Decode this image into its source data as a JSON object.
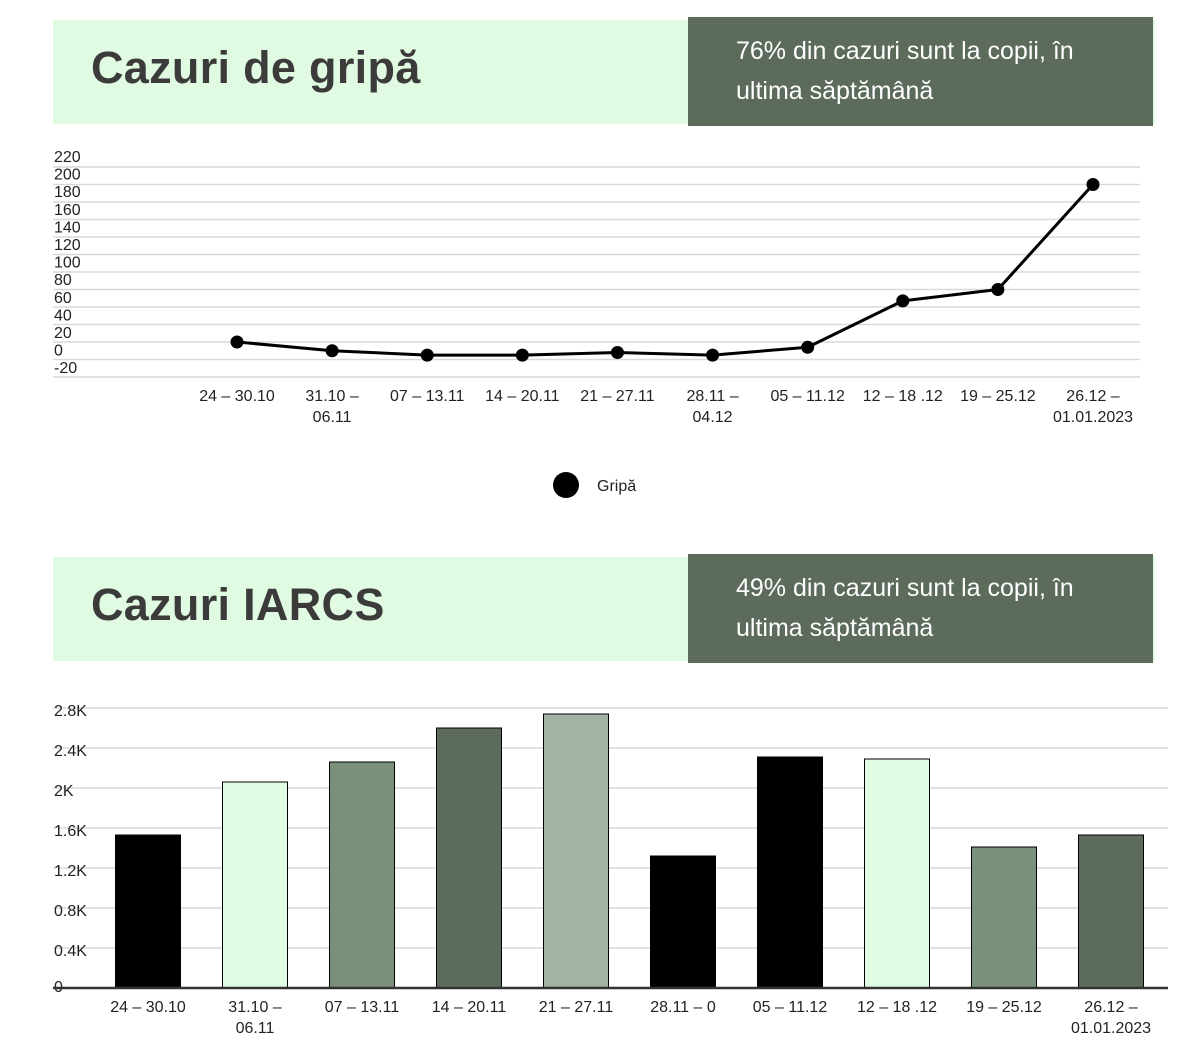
{
  "panels": [
    {
      "title": "Cazuri de gripă",
      "note": "76% din cazuri sunt la copii, în ultima săptămână"
    },
    {
      "title": "Cazuri IARCS",
      "note": "49% din cazuri sunt la copii, în ultima săptămână"
    }
  ],
  "colors": {
    "header_bg": "#e1fbe2",
    "note_bg": "#5c6b5b",
    "line": "#000000"
  },
  "chart_data": [
    {
      "type": "line",
      "title": "Cazuri de gripă",
      "categories": [
        "24 – 30.10",
        "31.10 – 06.11",
        "07 – 13.11",
        "14 – 20.11",
        "21 – 27.11",
        "28.11 – 04.12",
        "05 – 11.12",
        "12 – 18 .12",
        "19 – 25.12",
        "26.12 – 01.01.2023"
      ],
      "series": [
        {
          "name": "Gripă",
          "values": [
            0,
            -10,
            -15,
            -15,
            -12,
            -15,
            -6,
            47,
            60,
            180
          ]
        }
      ],
      "yticks": [
        "220",
        "200",
        "180",
        "160",
        "140",
        "120",
        "100",
        "80",
        "60",
        "40",
        "20",
        "0",
        "-20"
      ],
      "ylim": [
        -40,
        220
      ],
      "grid": true,
      "legend": "bottom-center"
    },
    {
      "type": "bar",
      "title": "Cazuri IARCS",
      "categories": [
        "24 – 30.10",
        "31.10 – 06.11",
        "07 – 13.11",
        "14 – 20.11",
        "21 – 27.11",
        "28.11 – 0",
        "05 – 11.12",
        "12 – 18 .12",
        "19 – 25.12",
        "26.12 – 01.01.2023"
      ],
      "values": [
        1530,
        2060,
        2260,
        2600,
        2740,
        1320,
        2310,
        2290,
        1410,
        1530
      ],
      "bar_colors": [
        "#000000",
        "#e1fbe2",
        "#7b907a",
        "#5c6b5b",
        "#a2b2a3",
        "#000000",
        "#000000",
        "#e1fbe2",
        "#7b907a",
        "#5c6b5b"
      ],
      "yticks": [
        "2.8K",
        "2.4K",
        "2K",
        "1.6K",
        "1.2K",
        "0.8K",
        "0.4K",
        "0"
      ],
      "ylim": [
        0,
        2800
      ],
      "grid": true
    }
  ]
}
